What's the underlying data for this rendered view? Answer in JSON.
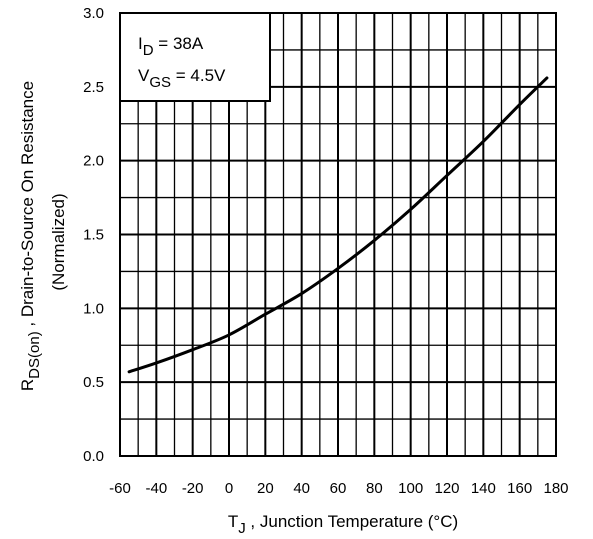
{
  "chart_data": {
    "type": "line",
    "x_ticks": [
      "-60",
      "-40",
      "-20",
      "0",
      "20",
      "40",
      "60",
      "80",
      "100",
      "120",
      "140",
      "160",
      "180"
    ],
    "y_ticks": [
      "0.0",
      "0.5",
      "1.0",
      "1.5",
      "2.0",
      "2.5",
      "3.0"
    ],
    "xlim": [
      -60,
      180
    ],
    "ylim": [
      0,
      3
    ],
    "grid": true,
    "x_minor_step": 10,
    "y_minor_step": 0.25,
    "xlabel": {
      "main": "T",
      "sub": "J",
      "rest": " , Junction Temperature (°C)"
    },
    "ylabel": {
      "main": "R",
      "sub": "DS(on)",
      "rest": " , Drain-to-Source On Resistance",
      "line2": "(Normalized)"
    },
    "annotation": {
      "line1": {
        "main": "I",
        "sub": "D",
        "rest": " = 38A"
      },
      "line2": {
        "main": "V",
        "sub": "GS",
        "rest": " = 4.5V"
      }
    },
    "series": [
      {
        "x": [
          -55,
          -40,
          -20,
          0,
          20,
          40,
          60,
          80,
          100,
          120,
          140,
          160,
          175
        ],
        "values": [
          0.57,
          0.63,
          0.72,
          0.82,
          0.96,
          1.1,
          1.27,
          1.46,
          1.67,
          1.9,
          2.13,
          2.38,
          2.56
        ]
      }
    ],
    "colors": {
      "line": "#000000",
      "grid": "#000000",
      "background": "#ffffff"
    }
  }
}
